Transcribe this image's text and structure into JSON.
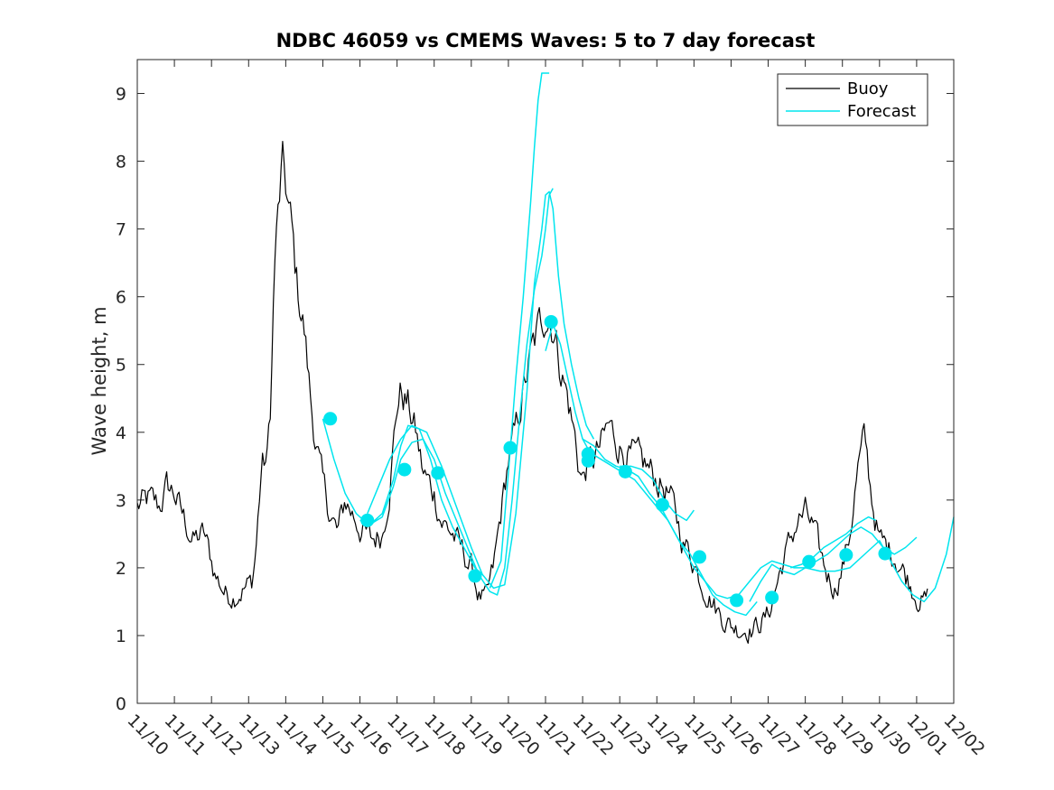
{
  "chart_data": {
    "type": "line",
    "title": "NDBC 46059 vs CMEMS Waves: 5 to 7 day forecast",
    "xlabel": "",
    "ylabel": "Wave height, m",
    "xlim": [
      0,
      22
    ],
    "ylim": [
      0,
      9.5
    ],
    "x_tick_labels": [
      "11/10",
      "11/11",
      "11/12",
      "11/13",
      "11/14",
      "11/15",
      "11/16",
      "11/17",
      "11/18",
      "11/19",
      "11/20",
      "11/21",
      "11/22",
      "11/23",
      "11/24",
      "11/25",
      "11/26",
      "11/27",
      "11/28",
      "11/29",
      "11/30",
      "12/01",
      "12/02"
    ],
    "y_ticks": [
      0,
      1,
      2,
      3,
      4,
      5,
      6,
      7,
      8,
      9
    ],
    "x_unit": "days since 11/10",
    "legend": {
      "placement": "top-right",
      "entries": [
        "Buoy",
        "Forecast"
      ]
    },
    "colors": {
      "buoy": "#000000",
      "forecast": "#00e5ee"
    },
    "series": [
      {
        "name": "Buoy",
        "noise": 0.18,
        "x": [
          0,
          0.3,
          0.6,
          0.8,
          1.0,
          1.2,
          1.5,
          1.8,
          2.0,
          2.1,
          2.4,
          2.6,
          2.9,
          3.1,
          3.2,
          3.35,
          3.5,
          3.6,
          3.7,
          3.8,
          3.9,
          4.0,
          4.15,
          4.3,
          4.5,
          4.7,
          5.0,
          5.2,
          5.4,
          5.6,
          5.8,
          6.0,
          6.3,
          6.6,
          6.8,
          7.0,
          7.1,
          7.3,
          7.5,
          7.7,
          8.0,
          8.2,
          8.5,
          8.8,
          9.0,
          9.2,
          9.4,
          9.6,
          9.8,
          10.0,
          10.2,
          10.4,
          10.6,
          10.8,
          11.0,
          11.2,
          11.4,
          11.6,
          11.8,
          11.9,
          12.0,
          12.1,
          12.3,
          12.5,
          12.7,
          12.9,
          13.1,
          13.4,
          13.7,
          14.0,
          14.3,
          14.5,
          14.7,
          15.0,
          15.2,
          15.4,
          15.6,
          15.8,
          16.0,
          16.2,
          16.4,
          16.6,
          17.0,
          17.2,
          17.4,
          17.6,
          17.8,
          18.0,
          18.2,
          18.4,
          18.6,
          18.8,
          19.0,
          19.2,
          19.4,
          19.6,
          19.8,
          20.0,
          20.2,
          20.4,
          20.6,
          20.8,
          20.9,
          21.0,
          21.1,
          21.2,
          21.3
        ],
        "y": [
          2.9,
          3.0,
          2.9,
          3.2,
          3.1,
          2.8,
          2.4,
          2.5,
          2.1,
          1.9,
          1.6,
          1.6,
          1.7,
          1.8,
          2.3,
          3.5,
          3.6,
          4.5,
          6.5,
          7.2,
          7.9,
          7.6,
          7.0,
          6.2,
          5.5,
          4.3,
          3.2,
          2.8,
          2.5,
          3.0,
          2.8,
          2.6,
          2.4,
          2.5,
          3.2,
          4.4,
          4.6,
          4.4,
          4.0,
          3.4,
          3.1,
          2.7,
          2.5,
          2.2,
          2.0,
          1.6,
          1.5,
          2.0,
          2.8,
          3.6,
          4.0,
          4.6,
          5.1,
          5.5,
          5.8,
          5.6,
          5.0,
          4.5,
          3.9,
          3.5,
          3.3,
          3.5,
          3.6,
          3.8,
          4.1,
          3.9,
          3.7,
          3.6,
          3.5,
          3.3,
          3.1,
          2.8,
          2.4,
          2.1,
          1.8,
          1.6,
          1.4,
          1.25,
          1.15,
          1.1,
          1.1,
          1.1,
          1.3,
          1.7,
          2.1,
          2.4,
          2.7,
          2.8,
          2.6,
          2.2,
          1.9,
          1.7,
          2.0,
          2.5,
          3.4,
          3.9,
          3.0,
          2.4,
          2.3,
          2.2,
          2.0,
          1.8,
          1.7,
          1.6,
          1.55,
          1.5,
          1.55
        ]
      },
      {
        "name": "Forecast",
        "segments": [
          {
            "x": [
              5.0,
              5.3,
              5.6,
              5.9,
              6.1,
              6.3,
              6.6,
              6.9,
              7.1,
              7.3,
              7.6,
              7.9,
              8.2,
              8.5,
              8.8,
              9.1,
              9.3
            ],
            "y": [
              4.2,
              3.6,
              3.1,
              2.8,
              2.7,
              2.65,
              2.8,
              3.3,
              3.8,
              4.1,
              4.05,
              3.6,
              3.0,
              2.6,
              2.3,
              2.0,
              1.9
            ]
          },
          {
            "x": [
              6.0,
              6.3,
              6.6,
              6.9,
              7.1,
              7.4,
              7.7,
              8.0,
              8.3,
              8.6,
              8.9,
              9.2,
              9.5,
              9.7,
              9.9,
              10.1,
              10.3,
              10.5,
              10.7,
              10.9,
              11.0,
              11.1,
              11.2
            ],
            "y": [
              2.7,
              2.65,
              2.75,
              3.2,
              3.6,
              3.85,
              3.9,
              3.6,
              3.1,
              2.7,
              2.3,
              1.9,
              1.65,
              1.6,
              2.0,
              3.0,
              4.2,
              5.3,
              6.1,
              6.6,
              7.0,
              7.5,
              7.6
            ]
          },
          {
            "x": [
              6.2,
              6.5,
              6.8,
              7.1,
              7.4,
              7.8,
              8.2,
              8.6,
              9.0,
              9.3,
              9.6,
              9.9,
              10.2,
              10.5,
              10.7,
              10.9,
              11.0,
              11.1,
              11.2,
              11.35,
              11.5,
              11.7,
              11.9,
              12.1,
              12.3
            ],
            "y": [
              2.8,
              3.2,
              3.6,
              3.9,
              4.1,
              4.0,
              3.5,
              2.9,
              2.3,
              1.9,
              1.7,
              1.75,
              2.8,
              4.6,
              6.2,
              7.0,
              7.5,
              7.55,
              7.3,
              6.3,
              5.6,
              5.0,
              4.5,
              4.1,
              3.9
            ]
          },
          {
            "x": [
              9.5,
              9.8,
              10.0,
              10.2,
              10.4,
              10.6,
              10.7,
              10.8,
              10.9,
              11.0,
              11.1
            ],
            "y": [
              1.7,
              2.1,
              3.4,
              4.8,
              6.0,
              7.4,
              8.2,
              8.9,
              9.3,
              9.3,
              9.3
            ]
          },
          {
            "x": [
              11.0,
              11.2,
              11.4,
              11.6,
              11.8,
              12.0,
              12.2,
              12.5,
              12.8,
              13.1,
              13.4,
              13.7,
              14.0,
              14.3,
              14.6,
              14.9,
              15.2,
              15.5,
              15.8,
              16.1,
              16.4,
              16.7
            ],
            "y": [
              5.2,
              5.6,
              5.3,
              4.8,
              4.3,
              3.9,
              3.7,
              3.6,
              3.5,
              3.4,
              3.3,
              3.1,
              2.9,
              2.7,
              2.4,
              2.2,
              1.9,
              1.6,
              1.45,
              1.35,
              1.3,
              1.5
            ]
          },
          {
            "x": [
              12.0,
              12.3,
              12.6,
              12.9,
              13.2,
              13.5,
              13.8,
              14.1,
              14.4,
              14.7,
              15.0,
              15.3,
              15.6,
              15.9,
              16.2,
              16.5,
              16.8,
              17.1,
              17.4,
              17.7,
              18.0,
              18.4,
              18.8,
              19.2,
              19.6,
              20.0,
              20.3,
              20.6,
              20.9,
              21.2,
              21.5,
              21.8,
              22.0
            ],
            "y": [
              3.9,
              3.8,
              3.6,
              3.5,
              3.45,
              3.35,
              3.1,
              2.9,
              2.6,
              2.3,
              2.0,
              1.8,
              1.6,
              1.55,
              1.6,
              1.8,
              2.0,
              2.1,
              2.05,
              2.0,
              2.0,
              1.95,
              1.95,
              2.0,
              2.2,
              2.4,
              2.1,
              1.8,
              1.6,
              1.5,
              1.7,
              2.2,
              2.75
            ]
          },
          {
            "x": [
              13.0,
              13.3,
              13.6,
              13.9,
              14.2,
              14.5,
              14.8,
              15.0
            ],
            "y": [
              3.5,
              3.5,
              3.45,
              3.3,
              3.0,
              2.8,
              2.7,
              2.85
            ]
          },
          {
            "x": [
              16.5,
              16.8,
              17.1,
              17.4,
              17.7,
              18.0,
              18.3,
              18.6,
              18.9,
              19.2,
              19.5,
              19.8,
              20.1,
              20.4,
              20.7,
              21.0
            ],
            "y": [
              1.5,
              1.8,
              2.05,
              1.95,
              1.9,
              2.0,
              2.1,
              2.2,
              2.35,
              2.5,
              2.6,
              2.5,
              2.3,
              2.2,
              2.3,
              2.45
            ]
          },
          {
            "x": [
              17.6,
              17.9,
              18.2,
              18.5,
              18.8,
              19.1,
              19.4,
              19.7,
              19.9
            ],
            "y": [
              2.0,
              2.05,
              2.15,
              2.3,
              2.4,
              2.5,
              2.65,
              2.75,
              2.7
            ]
          }
        ],
        "markers": {
          "x": [
            5.2,
            6.2,
            7.2,
            8.1,
            9.1,
            10.05,
            11.15,
            12.15,
            12.15,
            13.15,
            14.15,
            15.15,
            16.15,
            17.1,
            18.1,
            19.1,
            20.15
          ],
          "y": [
            4.2,
            2.7,
            3.45,
            3.4,
            1.88,
            3.77,
            5.63,
            3.68,
            3.58,
            3.42,
            2.93,
            2.16,
            1.52,
            1.56,
            2.09,
            2.19,
            2.21
          ]
        }
      }
    ]
  }
}
